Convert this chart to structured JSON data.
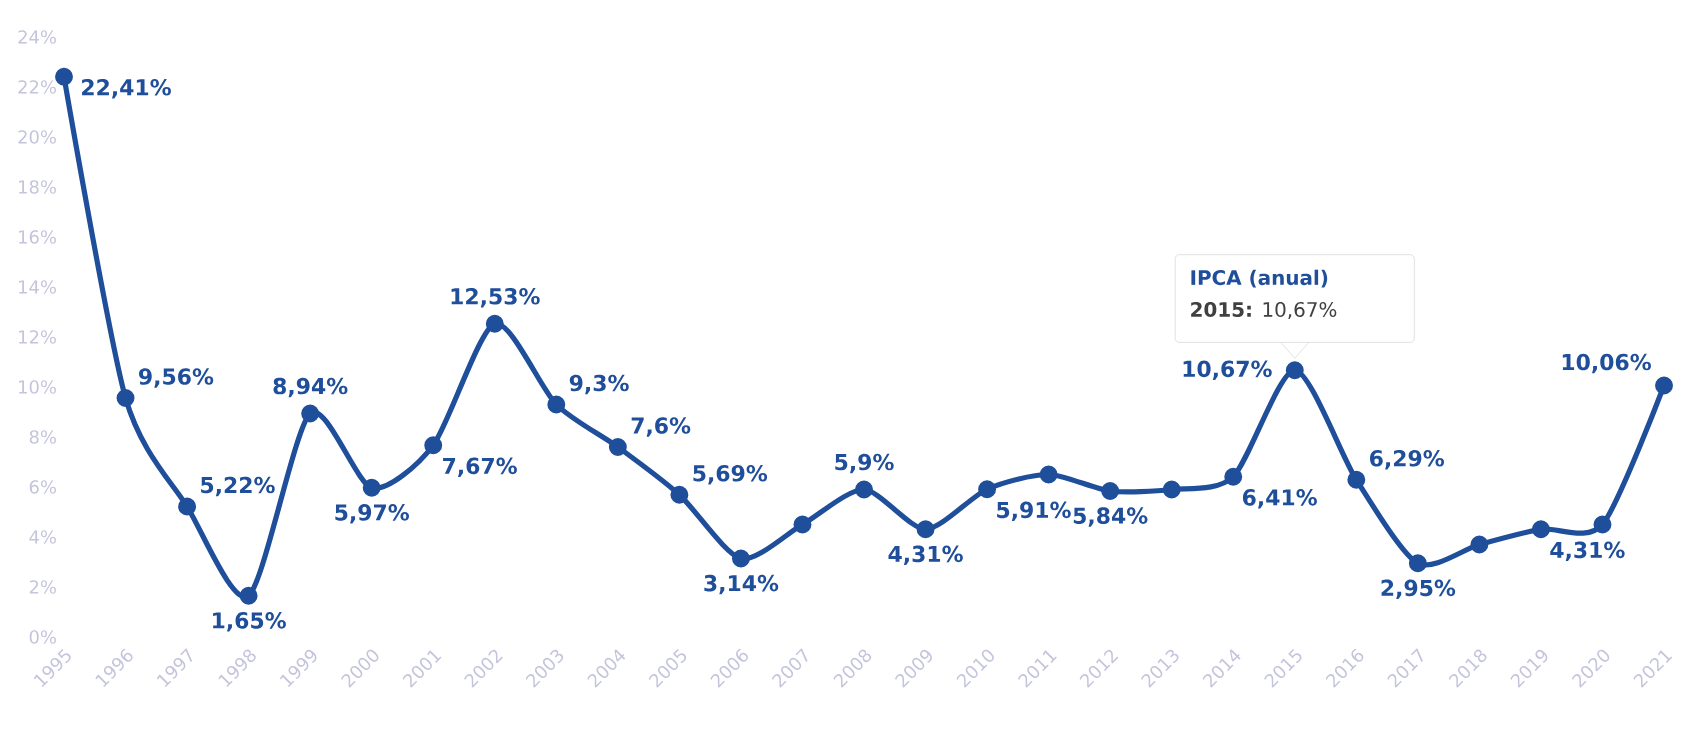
{
  "chart_data": {
    "type": "line",
    "categories": [
      "1995",
      "1996",
      "1997",
      "1998",
      "1999",
      "2000",
      "2001",
      "2002",
      "2003",
      "2004",
      "2005",
      "2006",
      "2007",
      "2008",
      "2009",
      "2010",
      "2011",
      "2012",
      "2013",
      "2014",
      "2015",
      "2016",
      "2017",
      "2018",
      "2019",
      "2020",
      "2021"
    ],
    "series": [
      {
        "color": "#1f4e9a",
        "values": [
          22.41,
          9.56,
          5.22,
          1.65,
          8.94,
          5.97,
          7.67,
          12.53,
          9.3,
          7.6,
          5.69,
          3.14,
          4.5,
          5.9,
          4.31,
          5.91,
          6.5,
          5.84,
          5.9,
          6.41,
          10.67,
          6.29,
          2.95,
          3.7,
          4.31,
          4.5,
          10.06
        ],
        "value_labels": [
          "22,41%",
          "9,56%",
          "5,22%",
          "1,65%",
          "8,94%",
          "5,97%",
          "7,67%",
          "12,53%",
          "9,3%",
          "7,6%",
          "5,69%",
          "3,14%",
          null,
          "5,9%",
          "4,31%",
          "5,91%",
          null,
          "5,84%",
          null,
          "6,41%",
          "10,67%",
          "6,29%",
          "2,95%",
          null,
          "4,31%",
          null,
          "10,06%"
        ]
      }
    ],
    "ylim": [
      0,
      24
    ],
    "yticks": [
      {
        "value": 0,
        "label": "0%"
      },
      {
        "value": 2,
        "label": "2%"
      },
      {
        "value": 4,
        "label": "4%"
      },
      {
        "value": 6,
        "label": "6%"
      },
      {
        "value": 8,
        "label": "8%"
      },
      {
        "value": 10,
        "label": "10%"
      },
      {
        "value": 12,
        "label": "12%"
      },
      {
        "value": 14,
        "label": "14%"
      },
      {
        "value": 16,
        "label": "16%"
      },
      {
        "value": 18,
        "label": "18%"
      },
      {
        "value": 20,
        "label": "20%"
      },
      {
        "value": 22,
        "label": "22%"
      },
      {
        "value": 24,
        "label": "24%"
      }
    ],
    "annotations": [
      "IPCA (anual)",
      {
        "text": "**2015:** 10,67%",
        "x": "2015",
        "y": 10.67
      }
    ],
    "grid": false,
    "marker": "circle",
    "line_style": "solid"
  }
}
